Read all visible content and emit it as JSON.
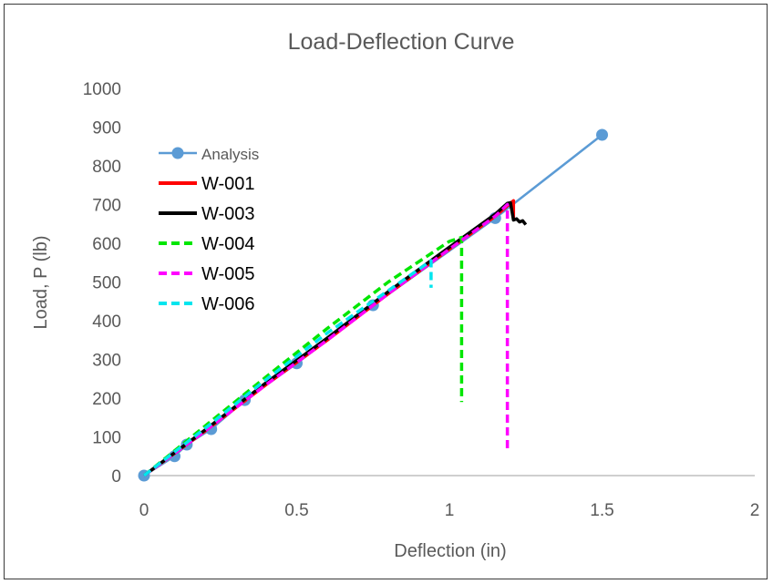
{
  "chart_data": {
    "type": "line",
    "title": "Load-Deflection Curve",
    "xlabel": "Deflection (in)",
    "ylabel": "Load, P (lb)",
    "xlim": [
      0,
      2
    ],
    "ylim": [
      0,
      1000
    ],
    "xticks": [
      "0",
      "0.5",
      "1",
      "1.5",
      "2"
    ],
    "yticks": [
      "0",
      "100",
      "200",
      "300",
      "400",
      "500",
      "600",
      "700",
      "800",
      "900",
      "1000"
    ],
    "grid": false,
    "legend_position": "left",
    "series": [
      {
        "name": "Analysis",
        "color": "#5b9bd5",
        "style": "solid-markers",
        "x": [
          0,
          0.1,
          0.14,
          0.22,
          0.33,
          0.5,
          0.75,
          1.15,
          1.5
        ],
        "y": [
          0,
          50,
          80,
          120,
          195,
          290,
          440,
          665,
          880
        ]
      },
      {
        "name": "W-001",
        "color": "#ff0000",
        "style": "solid",
        "x": [
          0,
          0.2,
          0.4,
          0.6,
          0.8,
          1.0,
          1.15,
          1.21,
          1.21
        ],
        "y": [
          0,
          115,
          235,
          350,
          470,
          585,
          670,
          710,
          665
        ]
      },
      {
        "name": "W-003",
        "color": "#000000",
        "style": "solid",
        "x": [
          0,
          0.2,
          0.4,
          0.6,
          0.8,
          1.0,
          1.15,
          1.19,
          1.2,
          1.21,
          1.22,
          1.23,
          1.24,
          1.25
        ],
        "y": [
          0,
          118,
          240,
          355,
          475,
          590,
          675,
          703,
          705,
          660,
          663,
          655,
          658,
          648
        ]
      },
      {
        "name": "W-004",
        "color": "#00e600",
        "style": "dashed",
        "x": [
          0,
          0.2,
          0.4,
          0.6,
          0.8,
          1.0,
          1.04,
          1.04
        ],
        "y": [
          0,
          128,
          255,
          380,
          500,
          605,
          615,
          190
        ]
      },
      {
        "name": "W-005",
        "color": "#ff00ff",
        "style": "dashed",
        "x": [
          0,
          0.2,
          0.4,
          0.6,
          0.8,
          1.0,
          1.15,
          1.19,
          1.19
        ],
        "y": [
          0,
          115,
          235,
          350,
          470,
          585,
          670,
          700,
          60
        ]
      },
      {
        "name": "W-006",
        "color": "#00e5ee",
        "style": "dashed",
        "x": [
          0,
          0.2,
          0.4,
          0.6,
          0.8,
          0.94,
          0.94
        ],
        "y": [
          0,
          122,
          248,
          368,
          478,
          555,
          485
        ]
      }
    ]
  }
}
